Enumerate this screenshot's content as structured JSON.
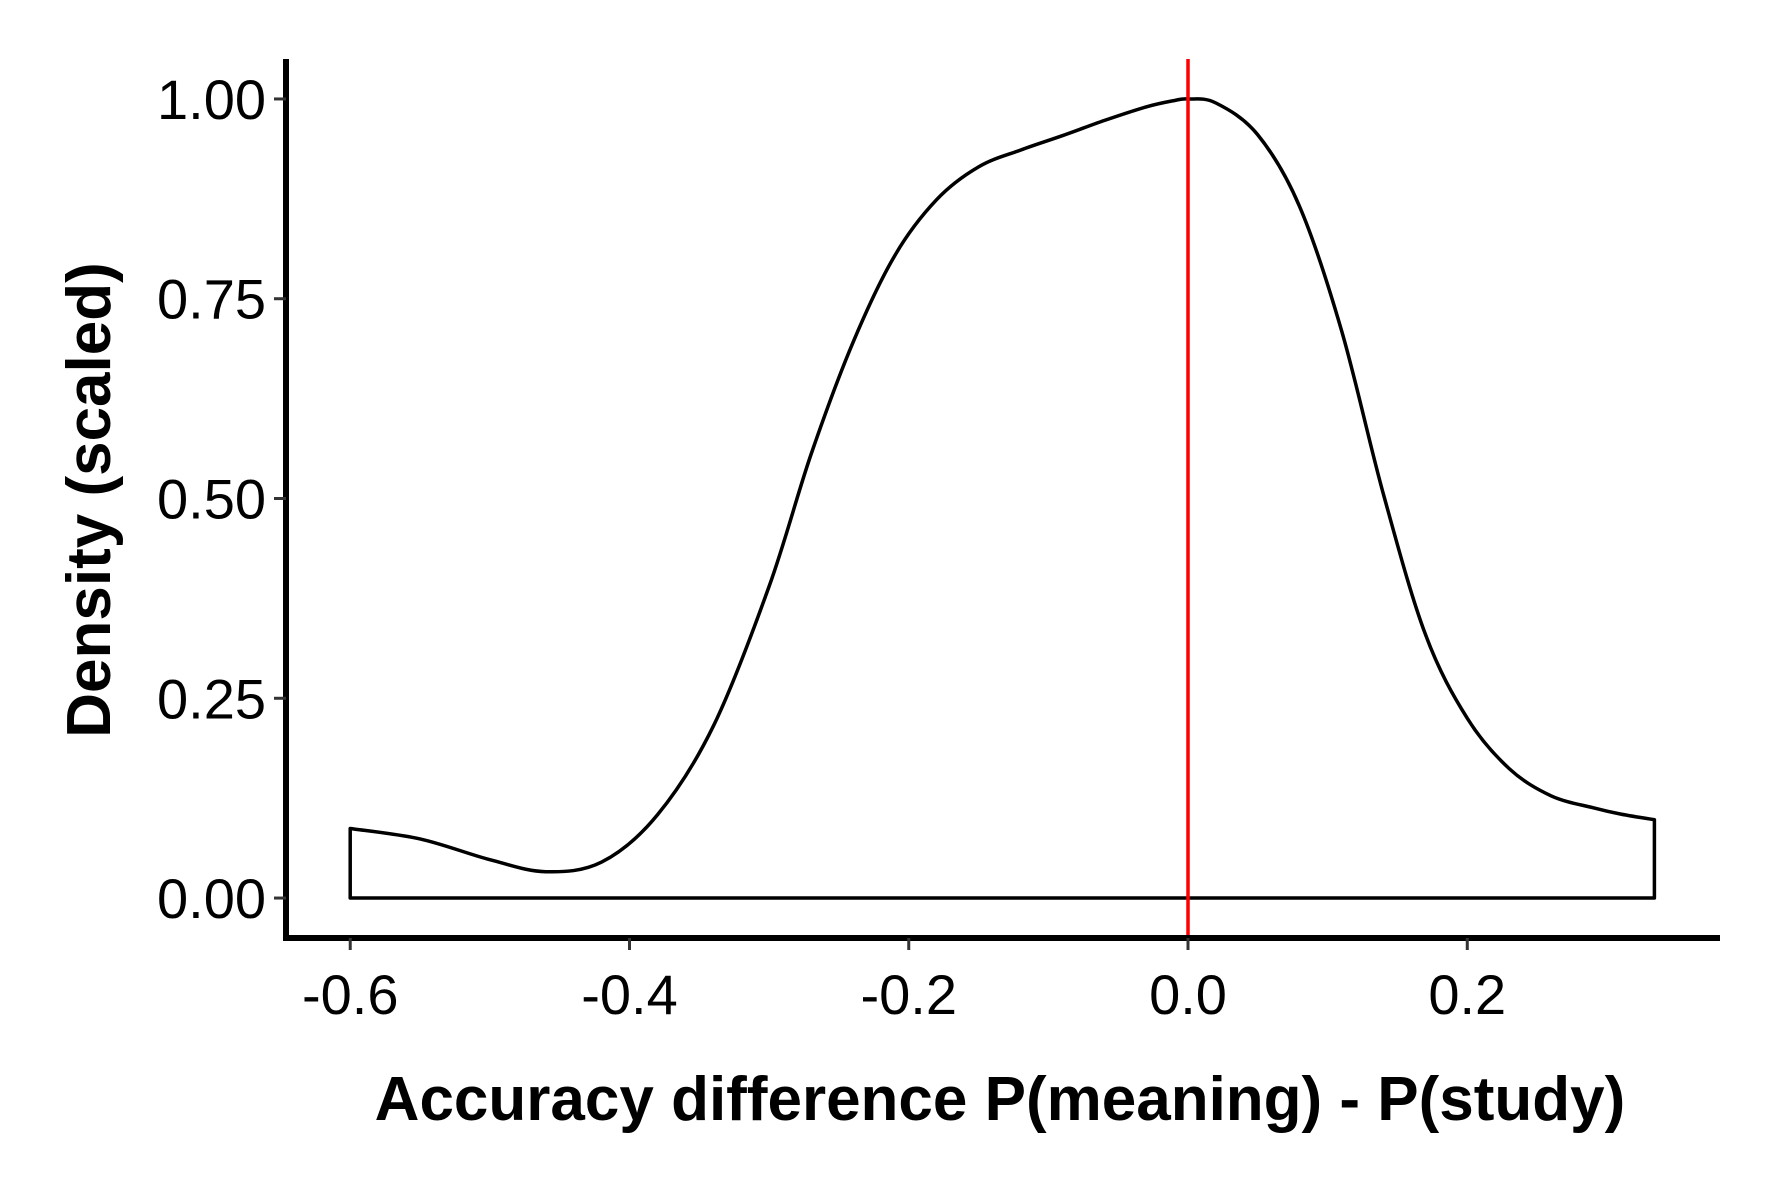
{
  "chart_data": {
    "type": "area",
    "title": "",
    "xlabel": "Accuracy difference P(meaning) - P(study)",
    "ylabel": "Density (scaled)",
    "xlim": [
      -0.646,
      0.381
    ],
    "ylim": [
      -0.05,
      1.05
    ],
    "x_ticks": [
      {
        "value": -0.6,
        "label": "-0.6"
      },
      {
        "value": -0.4,
        "label": "-0.4"
      },
      {
        "value": -0.2,
        "label": "-0.2"
      },
      {
        "value": 0.0,
        "label": "0.0"
      },
      {
        "value": 0.2,
        "label": "0.2"
      }
    ],
    "y_ticks": [
      {
        "value": 0.0,
        "label": "0.00"
      },
      {
        "value": 0.25,
        "label": "0.25"
      },
      {
        "value": 0.5,
        "label": "0.50"
      },
      {
        "value": 0.75,
        "label": "0.75"
      },
      {
        "value": 1.0,
        "label": "1.00"
      }
    ],
    "grid": false,
    "legend": "none",
    "series": [
      {
        "x": [
          -0.6,
          -0.55,
          -0.5,
          -0.46,
          -0.42,
          -0.38,
          -0.34,
          -0.3,
          -0.27,
          -0.24,
          -0.21,
          -0.18,
          -0.15,
          -0.12,
          -0.09,
          -0.06,
          -0.03,
          -0.01,
          0.0,
          0.02,
          0.05,
          0.08,
          0.11,
          0.14,
          0.17,
          0.2,
          0.23,
          0.26,
          0.29,
          0.31,
          0.334
        ],
        "values": [
          0.087,
          0.074,
          0.048,
          0.033,
          0.045,
          0.104,
          0.215,
          0.39,
          0.555,
          0.695,
          0.804,
          0.874,
          0.915,
          0.936,
          0.954,
          0.973,
          0.99,
          0.998,
          1.0,
          0.995,
          0.955,
          0.865,
          0.71,
          0.505,
          0.33,
          0.225,
          0.162,
          0.128,
          0.113,
          0.105,
          0.098
        ]
      }
    ],
    "reference_line": {
      "x": 0.0,
      "color": "#ff0000"
    },
    "line_color": "#000000",
    "fill_color": "#ffffff"
  }
}
